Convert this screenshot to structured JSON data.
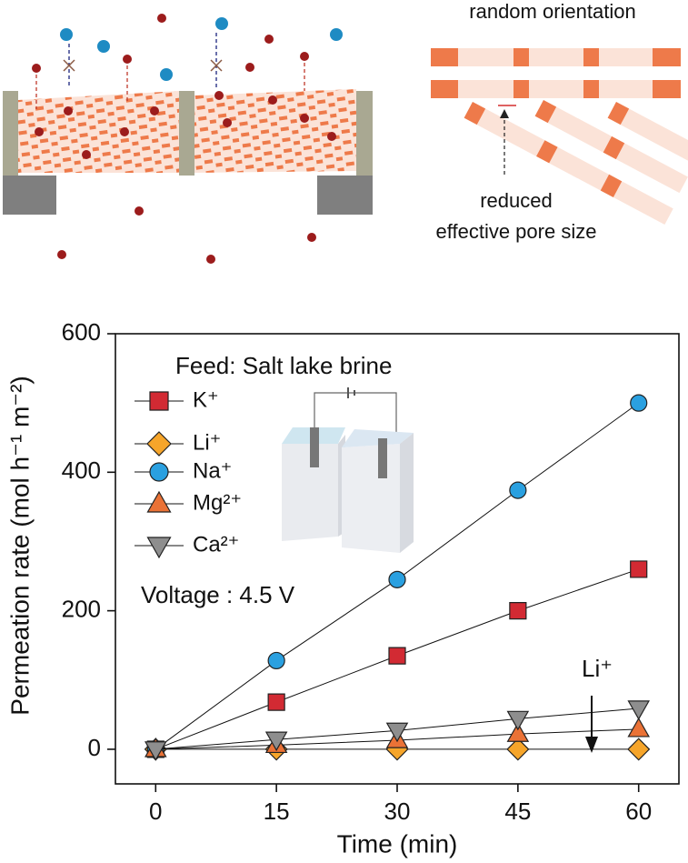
{
  "schematic": {
    "labels": [
      "random orientation",
      "reduced",
      "effective pore size"
    ]
  },
  "chart_data": {
    "type": "line",
    "x_label": "Time (min)",
    "y_label": "Permeation rate (mol h⁻¹ m⁻²)",
    "annotations": [
      "Feed: Salt lake brine",
      "Voltage : 4.5 V",
      "Li⁺"
    ],
    "x": [
      0,
      15,
      30,
      45,
      60
    ],
    "xlim": [
      -5,
      65
    ],
    "xticks": [
      0,
      15,
      30,
      45,
      60
    ],
    "ylim": [
      -50,
      600
    ],
    "yticks": [
      0,
      200,
      400,
      600
    ],
    "grid": false,
    "series": [
      {
        "name": "K⁺",
        "color": "#d22a33",
        "marker": "square",
        "values": [
          0,
          68,
          135,
          200,
          260
        ]
      },
      {
        "name": "Li⁺",
        "color": "#f6a52a",
        "marker": "diamond",
        "values": [
          0,
          0,
          0,
          0,
          0
        ]
      },
      {
        "name": "Na⁺",
        "color": "#2aa0e0",
        "marker": "circle",
        "values": [
          0,
          128,
          245,
          374,
          500
        ]
      },
      {
        "name": "Mg²⁺",
        "color": "#ea7236",
        "marker": "triangle-up",
        "values": [
          0,
          6,
          13,
          22,
          29
        ]
      },
      {
        "name": "Ca²⁺",
        "color": "#8e8e8e",
        "marker": "triangle-down",
        "values": [
          0,
          14,
          27,
          44,
          59
        ]
      }
    ]
  }
}
